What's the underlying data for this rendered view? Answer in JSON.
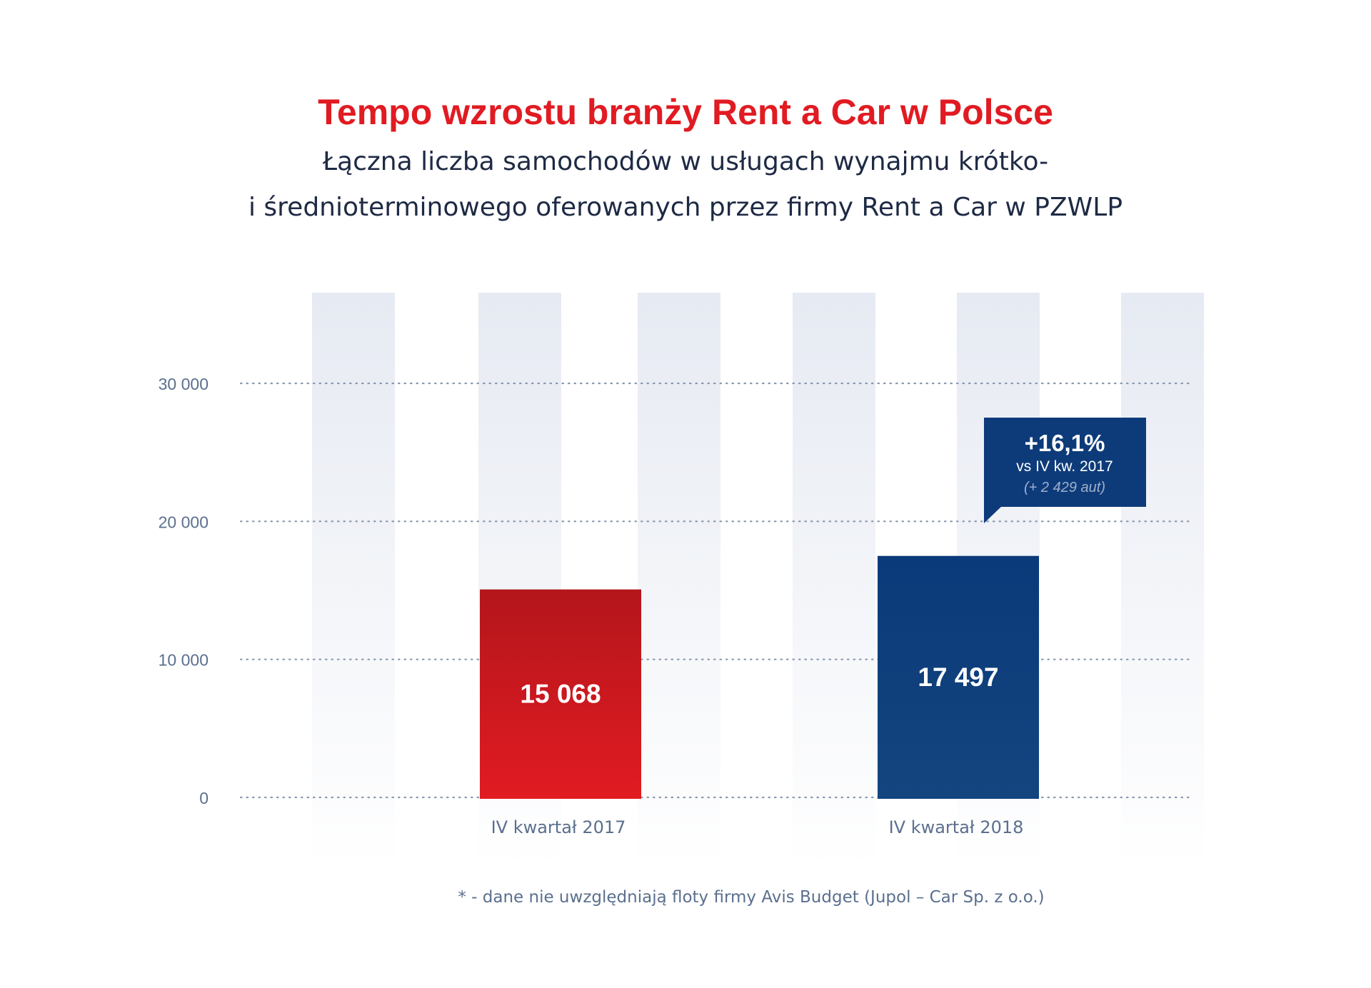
{
  "title": "Tempo wzrostu branży Rent a Car w Polsce",
  "subtitle_line1": "Łączna liczba samochodów w usługach wynajmu krótko-",
  "subtitle_line2": "i średnioterminowego oferowanych przez firmy Rent a Car w PZWLP",
  "footnote": "* - dane nie uwzględniają floty firmy Avis Budget (Jupol – Car Sp. z o.o.)",
  "colors": {
    "title": "#e11b22",
    "bar_2017_top": "#b3161b",
    "bar_2017_bottom": "#e11b22",
    "bar_2018": "#0d3b7a",
    "callout": "#0d3b7a",
    "axis_text": "#5b6f8e"
  },
  "callout": {
    "main": "+16,1%",
    "line2": "vs IV kw. 2017",
    "line3": "(+ 2 429 aut)"
  },
  "chart_data": {
    "type": "bar",
    "categories": [
      "IV kwartał 2017",
      "IV kwartał 2018"
    ],
    "values": [
      15068,
      17497
    ],
    "value_labels": [
      "15 068",
      "17 497"
    ],
    "yticks": [
      0,
      10000,
      20000,
      30000
    ],
    "ytick_labels": [
      "0",
      "10 000",
      "20 000",
      "30 000"
    ],
    "ylim": [
      0,
      30000
    ],
    "grid": true
  }
}
